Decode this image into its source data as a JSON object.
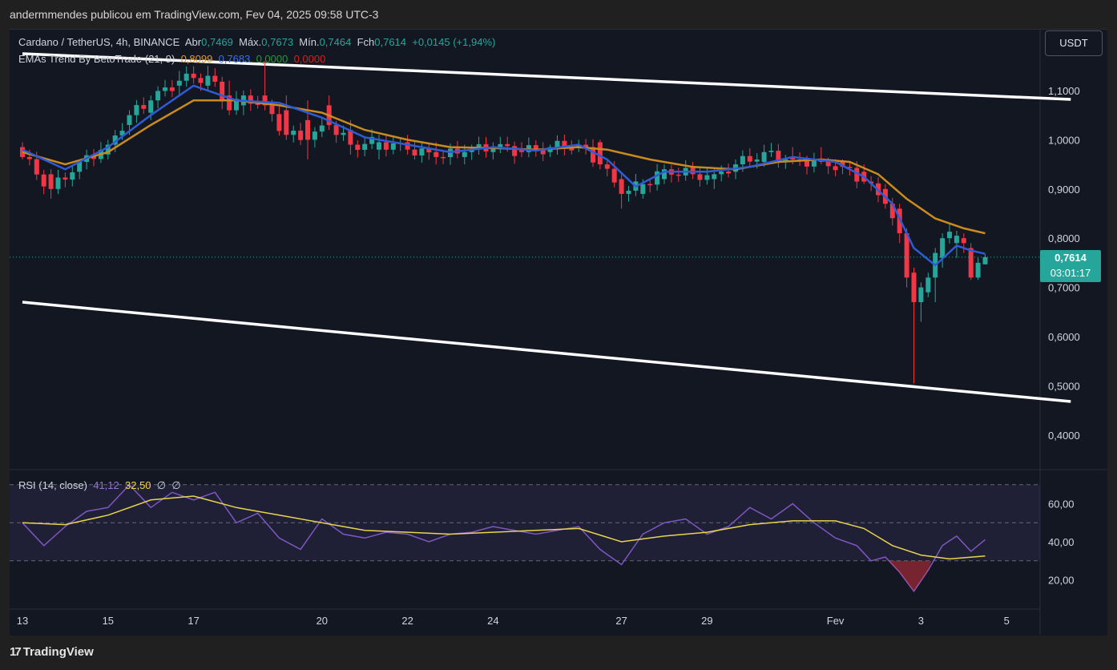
{
  "header": {
    "publish_text": "andermmendes publicou em TradingView.com, Fev 04, 2025 09:58 UTC-3"
  },
  "legend": {
    "symbol": "Cardano / TetherUS, 4h, BINANCE",
    "open_label": "Abr",
    "open_value": "0,7469",
    "high_label": "Máx.",
    "high_value": "0,7673",
    "low_label": "Mín.",
    "low_value": "0,7464",
    "close_label": "Fch",
    "close_value": "0,7614",
    "change": "+0,0145 (+1,94%)",
    "indicator_name": "EMAs Trend By BetoTrade (21, 9)",
    "ema21_value": "0,8099",
    "ema9_value": "0,7683",
    "extra1_value": "0,0000",
    "extra2_value": "0,0000",
    "rsi_name": "RSI (14, close)",
    "rsi_value": "41,12",
    "rsi_ma_value": "32,50",
    "rsi_extra1": "∅",
    "rsi_extra2": "∅"
  },
  "currency_button": "USDT",
  "price_badge": {
    "price": "0,7614",
    "countdown": "03:01:17"
  },
  "brand": {
    "logo": "17",
    "name": "TradingView"
  },
  "colors": {
    "up": "#26a69a",
    "down": "#f23645",
    "ema21": "#c98a1e",
    "ema9": "#2f5bd6",
    "rsi": "#7e57c2",
    "rsi_ma": "#e8d44d"
  },
  "chart_data": [
    {
      "type": "candlestick",
      "title": "Cardano / TetherUS, 4h, BINANCE",
      "y_tick_labels": [
        "1,1000",
        "1,0000",
        "0,9000",
        "0,8000",
        "0,7000",
        "0,6000",
        "0,5000",
        "0,4000"
      ],
      "x_tick_labels": [
        "13",
        "15",
        "17",
        "20",
        "22",
        "24",
        "27",
        "29",
        "Fev",
        "3",
        "5"
      ],
      "ylim": [
        0.33,
        1.19
      ],
      "x_axis_bar_index": {
        "13": 0,
        "15": 12,
        "17": 24,
        "20": 42,
        "22": 54,
        "24": 66,
        "27": 84,
        "29": 96,
        "Fev": 114,
        "3": 126,
        "5": 138
      },
      "ohlc_anchor_bars": [
        [
          0,
          0.985,
          0.995,
          0.96,
          0.965
        ],
        [
          4,
          0.93,
          0.94,
          0.88,
          0.9
        ],
        [
          8,
          0.935,
          0.96,
          0.92,
          0.955
        ],
        [
          12,
          0.97,
          1.0,
          0.96,
          0.99
        ],
        [
          15,
          1.03,
          1.06,
          1.01,
          1.05
        ],
        [
          18,
          1.055,
          1.09,
          1.04,
          1.08
        ],
        [
          22,
          1.11,
          1.14,
          1.09,
          1.12
        ],
        [
          26,
          1.11,
          1.15,
          1.1,
          1.13
        ],
        [
          29,
          1.09,
          1.12,
          1.05,
          1.06
        ],
        [
          31,
          1.07,
          1.1,
          1.05,
          1.09
        ],
        [
          34,
          1.09,
          1.16,
          1.06,
          1.07
        ],
        [
          37,
          1.06,
          1.09,
          1.0,
          1.01
        ],
        [
          40,
          1.04,
          1.08,
          0.96,
          1.0
        ],
        [
          43,
          1.07,
          1.09,
          1.02,
          1.03
        ],
        [
          46,
          1.02,
          1.04,
          0.97,
          0.99
        ],
        [
          50,
          0.98,
          1.01,
          0.96,
          0.995
        ],
        [
          54,
          0.995,
          1.01,
          0.97,
          0.98
        ],
        [
          58,
          0.975,
          0.995,
          0.95,
          0.965
        ],
        [
          62,
          0.965,
          0.99,
          0.95,
          0.975
        ],
        [
          66,
          0.975,
          0.995,
          0.96,
          0.985
        ],
        [
          70,
          0.98,
          0.995,
          0.965,
          0.975
        ],
        [
          74,
          0.975,
          0.99,
          0.965,
          0.985
        ],
        [
          78,
          0.985,
          1.0,
          0.975,
          0.99
        ],
        [
          81,
          0.995,
          1.0,
          0.94,
          0.95
        ],
        [
          84,
          0.92,
          0.93,
          0.86,
          0.89
        ],
        [
          87,
          0.89,
          0.92,
          0.88,
          0.91
        ],
        [
          90,
          0.92,
          0.95,
          0.91,
          0.94
        ],
        [
          94,
          0.945,
          0.955,
          0.92,
          0.93
        ],
        [
          97,
          0.92,
          0.94,
          0.9,
          0.93
        ],
        [
          100,
          0.935,
          0.96,
          0.92,
          0.95
        ],
        [
          104,
          0.955,
          0.99,
          0.945,
          0.975
        ],
        [
          108,
          0.965,
          0.985,
          0.95,
          0.96
        ],
        [
          112,
          0.96,
          0.985,
          0.95,
          0.955
        ],
        [
          115,
          0.955,
          0.96,
          0.93,
          0.945
        ],
        [
          118,
          0.935,
          0.95,
          0.91,
          0.915
        ],
        [
          121,
          0.9,
          0.91,
          0.86,
          0.87
        ],
        [
          123,
          0.86,
          0.87,
          0.79,
          0.81
        ],
        [
          124,
          0.81,
          0.82,
          0.7,
          0.72
        ],
        [
          125,
          0.73,
          0.74,
          0.505,
          0.67
        ],
        [
          126,
          0.67,
          0.71,
          0.63,
          0.7
        ],
        [
          127,
          0.69,
          0.73,
          0.68,
          0.72
        ],
        [
          128,
          0.72,
          0.78,
          0.67,
          0.77
        ],
        [
          129,
          0.76,
          0.81,
          0.74,
          0.8
        ],
        [
          131,
          0.79,
          0.815,
          0.76,
          0.805
        ],
        [
          132,
          0.8,
          0.81,
          0.77,
          0.79
        ],
        [
          133,
          0.78,
          0.79,
          0.715,
          0.72
        ],
        [
          134,
          0.72,
          0.76,
          0.715,
          0.75
        ],
        [
          135,
          0.7469,
          0.7673,
          0.7464,
          0.7614
        ]
      ],
      "ema21": [
        [
          0,
          0.975
        ],
        [
          6,
          0.95
        ],
        [
          12,
          0.975
        ],
        [
          18,
          1.03
        ],
        [
          24,
          1.08
        ],
        [
          30,
          1.08
        ],
        [
          36,
          1.07
        ],
        [
          42,
          1.055
        ],
        [
          48,
          1.02
        ],
        [
          54,
          1.0
        ],
        [
          60,
          0.985
        ],
        [
          66,
          0.983
        ],
        [
          72,
          0.98
        ],
        [
          78,
          0.985
        ],
        [
          82,
          0.98
        ],
        [
          88,
          0.96
        ],
        [
          94,
          0.945
        ],
        [
          100,
          0.94
        ],
        [
          106,
          0.955
        ],
        [
          112,
          0.96
        ],
        [
          116,
          0.955
        ],
        [
          120,
          0.93
        ],
        [
          124,
          0.88
        ],
        [
          128,
          0.84
        ],
        [
          132,
          0.82
        ],
        [
          135,
          0.8099
        ]
      ],
      "ema9": [
        [
          0,
          0.98
        ],
        [
          6,
          0.94
        ],
        [
          12,
          0.985
        ],
        [
          18,
          1.05
        ],
        [
          24,
          1.11
        ],
        [
          30,
          1.08
        ],
        [
          36,
          1.075
        ],
        [
          42,
          1.045
        ],
        [
          48,
          1.005
        ],
        [
          54,
          0.99
        ],
        [
          60,
          0.975
        ],
        [
          66,
          0.985
        ],
        [
          72,
          0.978
        ],
        [
          78,
          0.99
        ],
        [
          82,
          0.96
        ],
        [
          86,
          0.905
        ],
        [
          90,
          0.935
        ],
        [
          96,
          0.935
        ],
        [
          102,
          0.945
        ],
        [
          108,
          0.965
        ],
        [
          114,
          0.955
        ],
        [
          118,
          0.925
        ],
        [
          122,
          0.87
        ],
        [
          125,
          0.78
        ],
        [
          128,
          0.745
        ],
        [
          131,
          0.785
        ],
        [
          133,
          0.775
        ],
        [
          135,
          0.7683
        ]
      ],
      "trendlines": [
        {
          "from": [
            0,
            1.175
          ],
          "to": [
            147,
            1.082
          ]
        },
        {
          "from": [
            0,
            0.67
          ],
          "to": [
            147,
            0.468
          ]
        }
      ],
      "last_price": 0.7614
    },
    {
      "type": "line",
      "title": "RSI (14, close)",
      "y_tick_labels": [
        "60,00",
        "40,00",
        "20,00"
      ],
      "ylim": [
        10,
        75
      ],
      "bands": {
        "upper": 70,
        "middle": 50,
        "lower": 30
      },
      "series": [
        {
          "name": "RSI",
          "points": [
            [
              0,
              50
            ],
            [
              3,
              38
            ],
            [
              6,
              48
            ],
            [
              9,
              56
            ],
            [
              12,
              58
            ],
            [
              15,
              70
            ],
            [
              18,
              58
            ],
            [
              21,
              66
            ],
            [
              24,
              62
            ],
            [
              27,
              66
            ],
            [
              30,
              50
            ],
            [
              33,
              55
            ],
            [
              36,
              42
            ],
            [
              39,
              36
            ],
            [
              42,
              52
            ],
            [
              45,
              44
            ],
            [
              48,
              42
            ],
            [
              51,
              45
            ],
            [
              54,
              44
            ],
            [
              57,
              40
            ],
            [
              60,
              44
            ],
            [
              63,
              45
            ],
            [
              66,
              48
            ],
            [
              69,
              46
            ],
            [
              72,
              44
            ],
            [
              75,
              46
            ],
            [
              78,
              48
            ],
            [
              81,
              36
            ],
            [
              84,
              28
            ],
            [
              87,
              44
            ],
            [
              90,
              50
            ],
            [
              93,
              52
            ],
            [
              96,
              44
            ],
            [
              99,
              48
            ],
            [
              102,
              58
            ],
            [
              105,
              52
            ],
            [
              108,
              60
            ],
            [
              111,
              50
            ],
            [
              114,
              42
            ],
            [
              117,
              38
            ],
            [
              119,
              30
            ],
            [
              121,
              32
            ],
            [
              123,
              24
            ],
            [
              125,
              14
            ],
            [
              127,
              25
            ],
            [
              129,
              38
            ],
            [
              131,
              43
            ],
            [
              133,
              35
            ],
            [
              135,
              41.12
            ]
          ]
        },
        {
          "name": "RSI MA",
          "points": [
            [
              0,
              50
            ],
            [
              6,
              49
            ],
            [
              12,
              54
            ],
            [
              18,
              62
            ],
            [
              24,
              64
            ],
            [
              30,
              58
            ],
            [
              36,
              54
            ],
            [
              42,
              50
            ],
            [
              48,
              46
            ],
            [
              54,
              45
            ],
            [
              60,
              44
            ],
            [
              66,
              45
            ],
            [
              72,
              46
            ],
            [
              78,
              47
            ],
            [
              84,
              40
            ],
            [
              90,
              43
            ],
            [
              96,
              45
            ],
            [
              102,
              49
            ],
            [
              108,
              51
            ],
            [
              114,
              51
            ],
            [
              118,
              47
            ],
            [
              122,
              38
            ],
            [
              126,
              33
            ],
            [
              130,
              31
            ],
            [
              135,
              32.5
            ]
          ]
        }
      ]
    }
  ]
}
